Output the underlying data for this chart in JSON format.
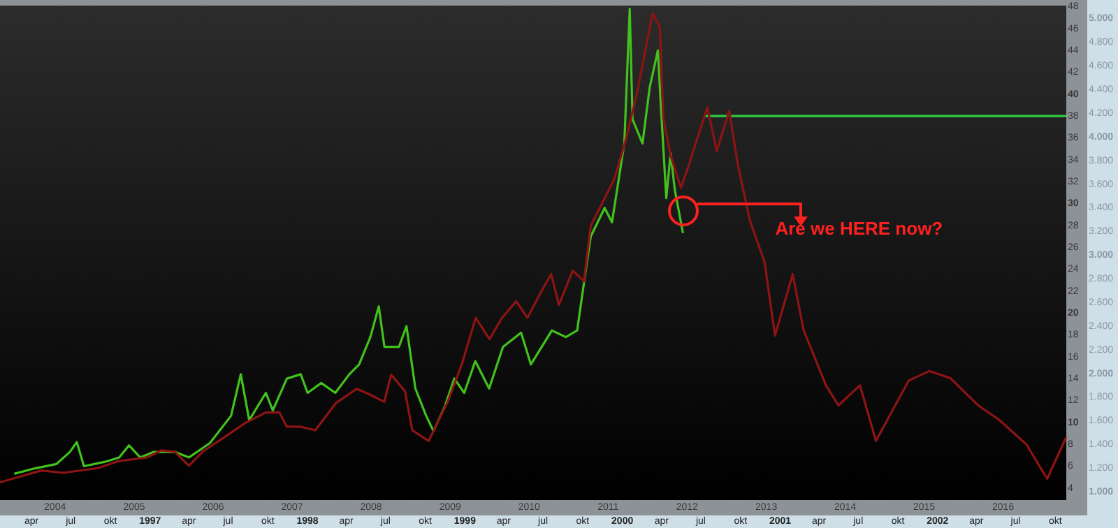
{
  "chart_data": [
    {
      "type": "line",
      "marker": "none",
      "xlim": [
        "2003-04-22",
        "2016-10-19"
      ],
      "xticks": [
        "2004",
        "2005",
        "2006",
        "2007",
        "2008",
        "2009",
        "2010",
        "2011",
        "2012",
        "2013",
        "2014",
        "2015",
        "2016"
      ],
      "ylim": [
        2.9,
        48.1
      ],
      "yticks": [
        4,
        6,
        8,
        10,
        12,
        14,
        16,
        18,
        20,
        22,
        24,
        26,
        28,
        30,
        32,
        34,
        36,
        38,
        40,
        42,
        44,
        46,
        48
      ],
      "series": [
        {
          "color": "#42c21c",
          "x": [
            "2003-06-27",
            "2003-10-01",
            "2004-01-08",
            "2004-03-10",
            "2004-04-11",
            "2004-05-14",
            "2004-08-20",
            "2004-10-24",
            "2004-12-08",
            "2005-01-29",
            "2005-04-02",
            "2005-07-08",
            "2005-09-12",
            "2005-12-17",
            "2006-03-25",
            "2006-05-09",
            "2006-06-17",
            "2006-09-02",
            "2006-10-04",
            "2006-12-08",
            "2007-02-10",
            "2007-03-14",
            "2007-05-16",
            "2007-07-20",
            "2007-09-23",
            "2007-11-07",
            "2007-12-29",
            "2008-02-06",
            "2008-03-03",
            "2008-05-09",
            "2008-06-13",
            "2008-07-24",
            "2008-09-12",
            "2008-10-16",
            "2008-12-08",
            "2009-01-20",
            "2009-03-07",
            "2009-04-27",
            "2009-06-30",
            "2009-09-02",
            "2009-11-25",
            "2010-01-09",
            "2010-04-16",
            "2010-06-20",
            "2010-08-11",
            "2010-09-24",
            "2010-10-13",
            "2010-12-16",
            "2011-01-19",
            "2011-03-17",
            "2011-04-11",
            "2011-04-24",
            "2011-06-09",
            "2011-07-12",
            "2011-08-19",
            "2011-09-02",
            "2011-09-27",
            "2011-10-17",
            "2011-11-05",
            "2011-12-13"
          ],
          "values": [
            5.3,
            5.8,
            6.2,
            7.3,
            8.2,
            6.0,
            6.4,
            6.8,
            7.9,
            6.8,
            7.3,
            7.3,
            6.8,
            8.1,
            10.6,
            14.4,
            10.2,
            12.7,
            11.1,
            14.0,
            14.4,
            12.7,
            13.6,
            12.7,
            14.4,
            15.3,
            17.8,
            20.6,
            16.9,
            16.9,
            18.8,
            13.1,
            10.6,
            9.2,
            11.5,
            14.0,
            12.7,
            15.6,
            13.1,
            16.9,
            18.2,
            15.3,
            18.4,
            17.8,
            18.4,
            24.5,
            27.0,
            29.6,
            28.3,
            35.5,
            47.8,
            37.7,
            35.5,
            40.6,
            44.0,
            38.9,
            30.5,
            34.6,
            31.3,
            27.3
          ]
        },
        {
          "color": "#2ecc40",
          "x": [
            "2012-03-25",
            "2016-10-19"
          ],
          "values": [
            38,
            38
          ]
        }
      ]
    },
    {
      "type": "line",
      "marker": "none",
      "xlim": [
        "1996-01-19",
        "2002-12-14"
      ],
      "xticks": [
        {
          "value": "1996-04",
          "label": "apr"
        },
        {
          "value": "1996-07",
          "label": "jul"
        },
        {
          "value": "1996-10",
          "label": "okt"
        },
        {
          "value": "1997-01",
          "label": "1997"
        },
        {
          "value": "1997-04",
          "label": "apr"
        },
        {
          "value": "1997-07",
          "label": "jul"
        },
        {
          "value": "1997-10",
          "label": "okt"
        },
        {
          "value": "1998-01",
          "label": "1998"
        },
        {
          "value": "1998-04",
          "label": "apr"
        },
        {
          "value": "1998-07",
          "label": "jul"
        },
        {
          "value": "1998-10",
          "label": "okt"
        },
        {
          "value": "1999-01",
          "label": "1999"
        },
        {
          "value": "1999-04",
          "label": "apr"
        },
        {
          "value": "1999-07",
          "label": "jul"
        },
        {
          "value": "1999-10",
          "label": "okt"
        },
        {
          "value": "2000-01",
          "label": "2000"
        },
        {
          "value": "2000-04",
          "label": "apr"
        },
        {
          "value": "2000-07",
          "label": "jul"
        },
        {
          "value": "2000-10",
          "label": "okt"
        },
        {
          "value": "2001-01",
          "label": "2001"
        },
        {
          "value": "2001-04",
          "label": "apr"
        },
        {
          "value": "2001-07",
          "label": "jul"
        },
        {
          "value": "2001-10",
          "label": "okt"
        },
        {
          "value": "2002-01",
          "label": "2002"
        },
        {
          "value": "2002-04",
          "label": "apr"
        },
        {
          "value": "2002-07",
          "label": "jul"
        },
        {
          "value": "2002-10",
          "label": "okt"
        }
      ],
      "ylim": [
        800,
        5157
      ],
      "yticks": [
        {
          "value": 1000,
          "label": "1.000"
        },
        {
          "value": 1200,
          "label": "1.200"
        },
        {
          "value": 1400,
          "label": "1.400"
        },
        {
          "value": 1600,
          "label": "1.600"
        },
        {
          "value": 1800,
          "label": "1.800"
        },
        {
          "value": 2000,
          "label": "2.000"
        },
        {
          "value": 2200,
          "label": "2.200"
        },
        {
          "value": 2400,
          "label": "2.400"
        },
        {
          "value": 2600,
          "label": "2.600"
        },
        {
          "value": 2800,
          "label": "2.800"
        },
        {
          "value": 3000,
          "label": "3.000"
        },
        {
          "value": 3200,
          "label": "3.200"
        },
        {
          "value": 3400,
          "label": "3.400"
        },
        {
          "value": 3600,
          "label": "3.600"
        },
        {
          "value": 3800,
          "label": "3.800"
        },
        {
          "value": 4000,
          "label": "4.000"
        },
        {
          "value": 4200,
          "label": "4.200"
        },
        {
          "value": 4400,
          "label": "4.400"
        },
        {
          "value": 4600,
          "label": "4.600"
        },
        {
          "value": 4800,
          "label": "4.800"
        },
        {
          "value": 5000,
          "label": "5.000"
        }
      ],
      "annotations": [
        "Are we HERE now?"
      ],
      "series": [
        {
          "color": "#8e1414",
          "x": [
            "1996-01-19",
            "1996-04-24",
            "1996-06-13",
            "1996-09-02",
            "1996-10-21",
            "1996-12-25",
            "1997-01-26",
            "1997-02-27",
            "1997-04-01",
            "1997-05-03",
            "1997-06-22",
            "1997-08-09",
            "1997-09-26",
            "1997-10-28",
            "1997-11-14",
            "1997-12-16",
            "1998-01-19",
            "1998-03-08",
            "1998-04-25",
            "1998-05-27",
            "1998-06-28",
            "1998-07-14",
            "1998-08-15",
            "1998-09-01",
            "1998-10-09",
            "1998-11-22",
            "1998-12-25",
            "1999-01-26",
            "1999-02-27",
            "1999-03-28",
            "1999-04-30",
            "1999-05-26",
            "1999-06-28",
            "1999-07-20",
            "1999-08-07",
            "1999-09-08",
            "1999-10-04",
            "1999-10-20",
            "1999-12-13",
            "2000-01-08",
            "2000-02-03",
            "2000-03-11",
            "2000-03-28",
            "2000-04-05",
            "2000-04-22",
            "2000-05-16",
            "2000-06-03",
            "2000-07-16",
            "2000-08-07",
            "2000-09-05",
            "2000-09-25",
            "2000-10-23",
            "2000-11-26",
            "2000-12-20",
            "2001-01-30",
            "2001-02-24",
            "2001-04-17",
            "2001-05-16",
            "2001-07-05",
            "2001-08-11",
            "2001-10-26",
            "2001-12-13",
            "2002-01-31",
            "2002-04-05",
            "2002-05-23",
            "2002-07-26",
            "2002-09-12",
            "2002-10-26"
          ],
          "values": [
            1080,
            1180,
            1160,
            1200,
            1260,
            1290,
            1350,
            1340,
            1220,
            1340,
            1460,
            1580,
            1670,
            1670,
            1550,
            1550,
            1520,
            1750,
            1870,
            1820,
            1760,
            1990,
            1850,
            1520,
            1430,
            1760,
            2080,
            2470,
            2290,
            2470,
            2610,
            2470,
            2700,
            2840,
            2580,
            2870,
            2780,
            3250,
            3640,
            3960,
            4350,
            5040,
            4930,
            4160,
            3840,
            3570,
            3760,
            4250,
            3880,
            4220,
            3760,
            3290,
            2940,
            2320,
            2840,
            2370,
            1900,
            1730,
            1900,
            1430,
            1940,
            2020,
            1960,
            1730,
            1610,
            1400,
            1110,
            1460
          ]
        }
      ]
    }
  ]
}
